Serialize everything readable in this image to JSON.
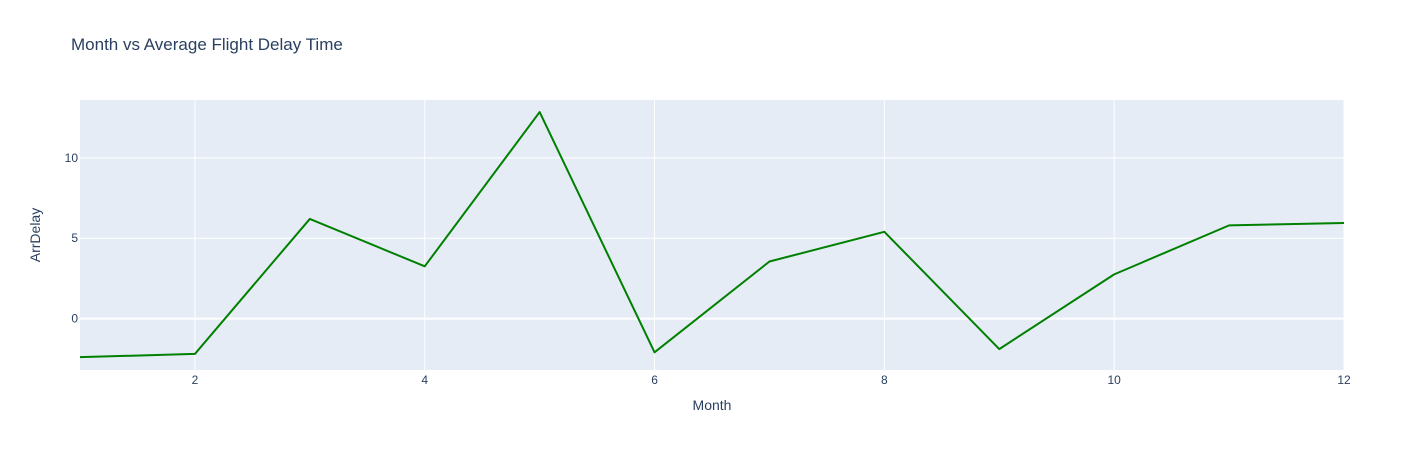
{
  "chart_data": {
    "type": "line",
    "title": "Month vs Average Flight Delay Time",
    "xlabel": "Month",
    "ylabel": "ArrDelay",
    "xlim": [
      1,
      12
    ],
    "ylim": [
      -3.2,
      13.6
    ],
    "x_ticks": [
      2,
      4,
      6,
      8,
      10,
      12
    ],
    "y_ticks": [
      0,
      5,
      10
    ],
    "grid": true,
    "legend": "none",
    "series": [
      {
        "color": "#008000",
        "x": [
          1,
          2,
          3,
          4,
          5,
          6,
          7,
          8,
          9,
          10,
          11,
          12
        ],
        "y": [
          -2.4,
          -2.2,
          6.2,
          3.25,
          12.85,
          -2.1,
          3.55,
          5.4,
          -1.9,
          2.75,
          5.8,
          5.95
        ]
      }
    ],
    "colors": {
      "plot_background": "#e5ecf6",
      "grid": "#ffffff",
      "text": "#2a3f5f"
    }
  }
}
